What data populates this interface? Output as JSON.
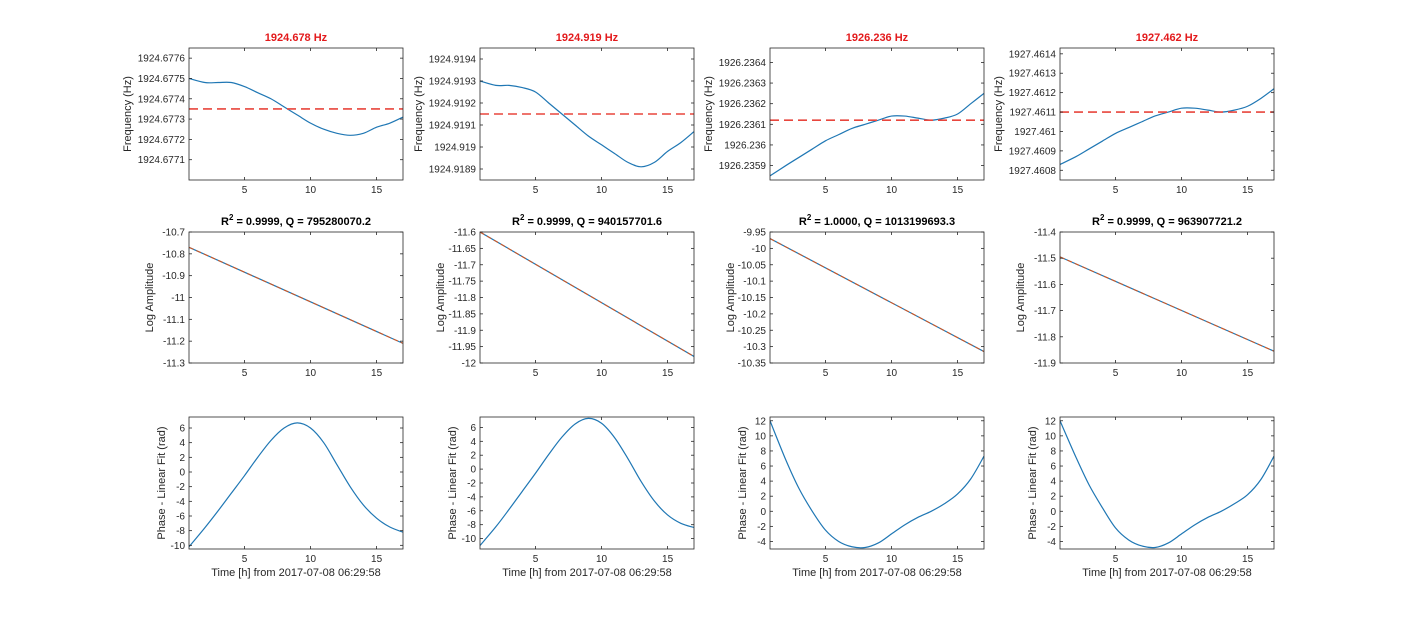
{
  "colors": {
    "signal": "#1f77b4",
    "reference": "#e8463d",
    "fit": "#d95319",
    "axis": "#262626",
    "frequency_title": "#e31a1c"
  },
  "time_label": "Time [h] from 2017-07-08 06:29:58",
  "chart_data": [
    {
      "type": "line",
      "panel": "frequency",
      "column": 1,
      "title": "1924.678 Hz",
      "ylabel": "Frequency (Hz)",
      "xlim": [
        0.8,
        17
      ],
      "ylim": [
        1924.677,
        1924.67765
      ],
      "xticks": [
        5,
        10,
        15
      ],
      "yticks": [
        1924.6771,
        1924.6772,
        1924.6773,
        1924.6774,
        1924.6775,
        1924.6776
      ],
      "ytick_labels": [
        "1924.6771",
        "1924.6772",
        "1924.6773",
        "1924.6774",
        "1924.6775",
        "1924.6776"
      ],
      "reference_line": 1924.67735,
      "series": [
        {
          "x": [
            0.8,
            2,
            3,
            4,
            5,
            6,
            7,
            8,
            9,
            10,
            11,
            12,
            13,
            14,
            15,
            16,
            17
          ],
          "y": [
            1924.6775,
            1924.67748,
            1924.67748,
            1924.67748,
            1924.67746,
            1924.67743,
            1924.6774,
            1924.67736,
            1924.67732,
            1924.67728,
            1924.67725,
            1924.67723,
            1924.67722,
            1924.67723,
            1924.67726,
            1924.67728,
            1924.67731
          ]
        }
      ]
    },
    {
      "type": "line",
      "panel": "frequency",
      "column": 2,
      "title": "1924.919 Hz",
      "ylabel": "Frequency (Hz)",
      "xlim": [
        0.8,
        17
      ],
      "ylim": [
        1924.91885,
        1924.91945
      ],
      "xticks": [
        5,
        10,
        15
      ],
      "yticks": [
        1924.9189,
        1924.919,
        1924.9191,
        1924.9192,
        1924.9193,
        1924.9194
      ],
      "ytick_labels": [
        "1924.9189",
        "1924.919",
        "1924.9191",
        "1924.9192",
        "1924.9193",
        "1924.9194"
      ],
      "reference_line": 1924.91915,
      "series": [
        {
          "x": [
            0.8,
            2,
            3,
            4,
            5,
            6,
            7,
            8,
            9,
            10,
            11,
            12,
            13,
            14,
            15,
            16,
            17
          ],
          "y": [
            1924.9193,
            1924.91928,
            1924.91928,
            1924.91927,
            1924.91925,
            1924.9192,
            1924.91915,
            1924.9191,
            1924.91905,
            1924.91901,
            1924.91897,
            1924.91893,
            1924.91891,
            1924.91893,
            1924.91898,
            1924.91902,
            1924.91907
          ]
        }
      ]
    },
    {
      "type": "line",
      "panel": "frequency",
      "column": 3,
      "title": "1926.236 Hz",
      "ylabel": "Frequency (Hz)",
      "xlim": [
        0.8,
        17
      ],
      "ylim": [
        1926.23583,
        1926.23647
      ],
      "xticks": [
        5,
        10,
        15
      ],
      "yticks": [
        1926.2359,
        1926.236,
        1926.2361,
        1926.2362,
        1926.2363,
        1926.2364
      ],
      "ytick_labels": [
        "1926.2359",
        "1926.236",
        "1926.2361",
        "1926.2362",
        "1926.2363",
        "1926.2364"
      ],
      "reference_line": 1926.23612,
      "series": [
        {
          "x": [
            0.8,
            2,
            3,
            4,
            5,
            6,
            7,
            8,
            9,
            10,
            11,
            12,
            13,
            14,
            15,
            16,
            17
          ],
          "y": [
            1926.23585,
            1926.2359,
            1926.23594,
            1926.23598,
            1926.23602,
            1926.23605,
            1926.23608,
            1926.2361,
            1926.23612,
            1926.23614,
            1926.23614,
            1926.23613,
            1926.23612,
            1926.23613,
            1926.23615,
            1926.2362,
            1926.23625
          ]
        }
      ]
    },
    {
      "type": "line",
      "panel": "frequency",
      "column": 4,
      "title": "1927.462 Hz",
      "ylabel": "Frequency (Hz)",
      "xlim": [
        0.8,
        17
      ],
      "ylim": [
        1927.46075,
        1927.46143
      ],
      "xticks": [
        5,
        10,
        15
      ],
      "yticks": [
        1927.4608,
        1927.4609,
        1927.461,
        1927.4611,
        1927.4612,
        1927.4613,
        1927.4614
      ],
      "ytick_labels": [
        "1927.4608",
        "1927.4609",
        "1927.461",
        "1927.4611",
        "1927.4612",
        "1927.4613",
        "1927.4614"
      ],
      "reference_line": 1927.4611,
      "series": [
        {
          "x": [
            0.8,
            2,
            3,
            4,
            5,
            6,
            7,
            8,
            9,
            10,
            11,
            12,
            13,
            14,
            15,
            16,
            17
          ],
          "y": [
            1927.46083,
            1927.46087,
            1927.46091,
            1927.46095,
            1927.46099,
            1927.46102,
            1927.46105,
            1927.46108,
            1927.4611,
            1927.46112,
            1927.46112,
            1927.46111,
            1927.4611,
            1927.46111,
            1927.46113,
            1927.46117,
            1927.46122
          ]
        }
      ]
    },
    {
      "type": "line",
      "panel": "amplitude",
      "column": 1,
      "title_prefix": "R",
      "title_sup": "2",
      "title_suffix": " = 0.9999, Q = 795280070.2",
      "ylabel": "Log Amplitude",
      "xlim": [
        0.8,
        17
      ],
      "ylim": [
        -11.3,
        -10.7
      ],
      "xticks": [
        5,
        10,
        15
      ],
      "yticks": [
        -11.3,
        -11.2,
        -11.1,
        -11,
        -10.9,
        -10.8,
        -10.7
      ],
      "ytick_labels": [
        "-11.3",
        "-11.2",
        "-11.1",
        "-11",
        "-10.9",
        "-10.8",
        "-10.7"
      ],
      "series": [
        {
          "x": [
            0.8,
            17
          ],
          "y": [
            -10.77,
            -11.21
          ]
        }
      ],
      "fit": {
        "x": [
          0.8,
          17
        ],
        "y": [
          -10.77,
          -11.21
        ]
      }
    },
    {
      "type": "line",
      "panel": "amplitude",
      "column": 2,
      "title_prefix": "R",
      "title_sup": "2",
      "title_suffix": " = 0.9999, Q = 940157701.6",
      "ylabel": "Log Amplitude",
      "xlim": [
        0.8,
        17
      ],
      "ylim": [
        -12,
        -11.6
      ],
      "xticks": [
        5,
        10,
        15
      ],
      "yticks": [
        -12,
        -11.95,
        -11.9,
        -11.85,
        -11.8,
        -11.75,
        -11.7,
        -11.65,
        -11.6
      ],
      "ytick_labels": [
        "-12",
        "-11.95",
        "-11.9",
        "-11.85",
        "-11.8",
        "-11.75",
        "-11.7",
        "-11.65",
        "-11.6"
      ],
      "series": [
        {
          "x": [
            0.8,
            17
          ],
          "y": [
            -11.6,
            -11.98
          ]
        }
      ],
      "fit": {
        "x": [
          0.8,
          17
        ],
        "y": [
          -11.6,
          -11.98
        ]
      }
    },
    {
      "type": "line",
      "panel": "amplitude",
      "column": 3,
      "title_prefix": "R",
      "title_sup": "2",
      "title_suffix": " = 1.0000, Q = 1013199693.3",
      "ylabel": "Log Amplitude",
      "xlim": [
        0.8,
        17
      ],
      "ylim": [
        -10.35,
        -9.95
      ],
      "xticks": [
        5,
        10,
        15
      ],
      "yticks": [
        -10.35,
        -10.3,
        -10.25,
        -10.2,
        -10.15,
        -10.1,
        -10.05,
        -10,
        -9.95
      ],
      "ytick_labels": [
        "-10.35",
        "-10.3",
        "-10.25",
        "-10.2",
        "-10.15",
        "-10.1",
        "-10.05",
        "-10",
        "-9.95"
      ],
      "series": [
        {
          "x": [
            0.8,
            17
          ],
          "y": [
            -9.97,
            -10.315
          ]
        }
      ],
      "fit": {
        "x": [
          0.8,
          17
        ],
        "y": [
          -9.97,
          -10.315
        ]
      }
    },
    {
      "type": "line",
      "panel": "amplitude",
      "column": 4,
      "title_prefix": "R",
      "title_sup": "2",
      "title_suffix": " = 0.9999, Q = 963907721.2",
      "ylabel": "Log Amplitude",
      "xlim": [
        0.8,
        17
      ],
      "ylim": [
        -11.9,
        -11.4
      ],
      "xticks": [
        5,
        10,
        15
      ],
      "yticks": [
        -11.9,
        -11.8,
        -11.7,
        -11.6,
        -11.5,
        -11.4
      ],
      "ytick_labels": [
        "-11.9",
        "-11.8",
        "-11.7",
        "-11.6",
        "-11.5",
        "-11.4"
      ],
      "series": [
        {
          "x": [
            0.8,
            17
          ],
          "y": [
            -11.495,
            -11.855
          ]
        }
      ],
      "fit": {
        "x": [
          0.8,
          17
        ],
        "y": [
          -11.495,
          -11.855
        ]
      }
    },
    {
      "type": "line",
      "panel": "phase",
      "column": 1,
      "ylabel": "Phase - Linear Fit (rad)",
      "xlabel": "Time [h] from 2017-07-08 06:29:58",
      "xlim": [
        0.8,
        17
      ],
      "ylim": [
        -10.5,
        7.5
      ],
      "xticks": [
        5,
        10,
        15
      ],
      "yticks": [
        -10,
        -8,
        -6,
        -4,
        -2,
        0,
        2,
        4,
        6
      ],
      "ytick_labels": [
        "-10",
        "-8",
        "-6",
        "-4",
        "-2",
        "0",
        "2",
        "4",
        "6"
      ],
      "series": [
        {
          "x": [
            0.8,
            2,
            3,
            4,
            5,
            6,
            7,
            8,
            9,
            10,
            11,
            12,
            13,
            14,
            15,
            16,
            17
          ],
          "y": [
            -10.2,
            -7.6,
            -5.3,
            -2.9,
            -0.5,
            2.0,
            4.3,
            6.0,
            6.7,
            6.0,
            4.0,
            1.0,
            -2.0,
            -4.5,
            -6.3,
            -7.5,
            -8.2
          ]
        }
      ]
    },
    {
      "type": "line",
      "panel": "phase",
      "column": 2,
      "ylabel": "Phase - Linear Fit (rad)",
      "xlabel": "Time [h] from 2017-07-08 06:29:58",
      "xlim": [
        0.8,
        17
      ],
      "ylim": [
        -11.5,
        7.5
      ],
      "xticks": [
        5,
        10,
        15
      ],
      "yticks": [
        -10,
        -8,
        -6,
        -4,
        -2,
        0,
        2,
        4,
        6
      ],
      "ytick_labels": [
        "-10",
        "-8",
        "-6",
        "-4",
        "-2",
        "0",
        "2",
        "4",
        "6"
      ],
      "series": [
        {
          "x": [
            0.8,
            2,
            3,
            4,
            5,
            6,
            7,
            8,
            9,
            10,
            11,
            12,
            13,
            14,
            15,
            16,
            17
          ],
          "y": [
            -11.0,
            -8.3,
            -5.8,
            -3.2,
            -0.6,
            2.1,
            4.6,
            6.5,
            7.3,
            6.6,
            4.5,
            1.5,
            -1.8,
            -4.6,
            -6.6,
            -7.8,
            -8.4
          ]
        }
      ]
    },
    {
      "type": "line",
      "panel": "phase",
      "column": 3,
      "ylabel": "Phase - Linear Fit (rad)",
      "xlabel": "Time [h] from 2017-07-08 06:29:58",
      "xlim": [
        0.8,
        17
      ],
      "ylim": [
        -5,
        12.5
      ],
      "xticks": [
        5,
        10,
        15
      ],
      "yticks": [
        -4,
        -2,
        0,
        2,
        4,
        6,
        8,
        10,
        12
      ],
      "ytick_labels": [
        "-4",
        "-2",
        "0",
        "2",
        "4",
        "6",
        "8",
        "10",
        "12"
      ],
      "series": [
        {
          "x": [
            0.8,
            2,
            3,
            4,
            5,
            6,
            7,
            8,
            9,
            10,
            11,
            12,
            13,
            14,
            15,
            16,
            17
          ],
          "y": [
            12.0,
            6.8,
            3.0,
            0.0,
            -2.5,
            -4.0,
            -4.7,
            -4.8,
            -4.2,
            -3.0,
            -1.8,
            -0.8,
            0.0,
            1.0,
            2.3,
            4.3,
            7.3
          ]
        }
      ]
    },
    {
      "type": "line",
      "panel": "phase",
      "column": 4,
      "ylabel": "Phase - Linear Fit (rad)",
      "xlabel": "Time [h] from 2017-07-08 06:29:58",
      "xlim": [
        0.8,
        17
      ],
      "ylim": [
        -5,
        12.5
      ],
      "xticks": [
        5,
        10,
        15
      ],
      "yticks": [
        -4,
        -2,
        0,
        2,
        4,
        6,
        8,
        10,
        12
      ],
      "ytick_labels": [
        "-4",
        "-2",
        "0",
        "2",
        "4",
        "6",
        "8",
        "10",
        "12"
      ],
      "series": [
        {
          "x": [
            0.8,
            2,
            3,
            4,
            5,
            6,
            7,
            8,
            9,
            10,
            11,
            12,
            13,
            14,
            15,
            16,
            17
          ],
          "y": [
            12.0,
            7.2,
            3.5,
            0.5,
            -2.2,
            -3.8,
            -4.6,
            -4.8,
            -4.2,
            -3.0,
            -1.8,
            -0.8,
            0.0,
            1.0,
            2.2,
            4.2,
            7.3
          ]
        }
      ]
    }
  ]
}
